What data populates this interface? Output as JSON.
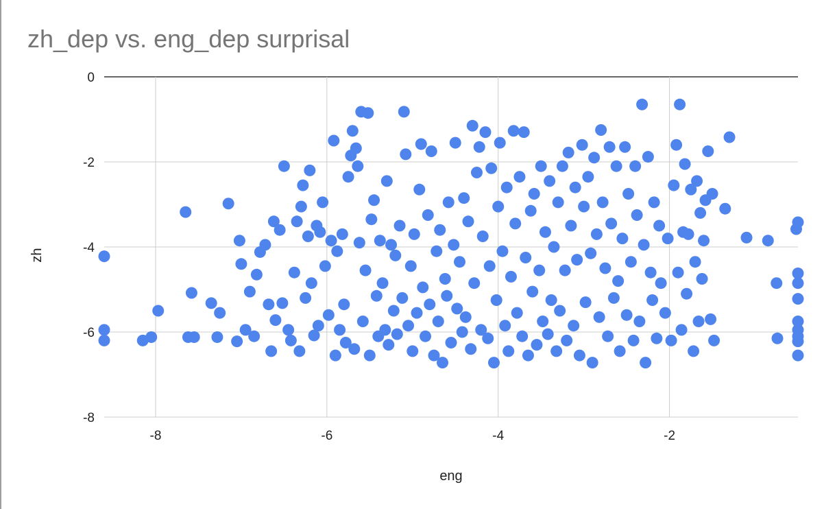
{
  "chart_data": {
    "type": "scatter",
    "title": "zh_dep vs. eng_dep surprisal",
    "xlabel": "eng",
    "ylabel": "zh",
    "xlim": [
      -8.6,
      -0.5
    ],
    "ylim": [
      -8,
      0
    ],
    "x_ticks": [
      -8,
      -6,
      -4,
      -2
    ],
    "x_tick_labels": [
      "-8",
      "-6",
      "-4",
      "-2"
    ],
    "y_ticks": [
      0,
      -2,
      -4,
      -6,
      -8
    ],
    "y_tick_labels": [
      "0",
      "-2",
      "-4",
      "-6",
      "-8"
    ],
    "grid": true,
    "legend": "none",
    "color": "#4f84ec",
    "series": [
      {
        "points": [
          [
            -8.6,
            -4.22
          ],
          [
            -8.6,
            -5.95
          ],
          [
            -8.6,
            -6.2
          ],
          [
            -8.15,
            -6.2
          ],
          [
            -8.05,
            -6.12
          ],
          [
            -7.97,
            -5.5
          ],
          [
            -7.65,
            -3.18
          ],
          [
            -7.62,
            -6.12
          ],
          [
            -7.58,
            -5.08
          ],
          [
            -7.55,
            -6.12
          ],
          [
            -7.35,
            -5.32
          ],
          [
            -7.28,
            -6.12
          ],
          [
            -7.25,
            -5.55
          ],
          [
            -7.15,
            -2.98
          ],
          [
            -7.05,
            -6.22
          ],
          [
            -7.02,
            -3.85
          ],
          [
            -7.0,
            -4.4
          ],
          [
            -6.95,
            -5.95
          ],
          [
            -6.9,
            -5.05
          ],
          [
            -6.85,
            -6.1
          ],
          [
            -6.82,
            -4.65
          ],
          [
            -6.78,
            -4.12
          ],
          [
            -6.72,
            -3.95
          ],
          [
            -6.68,
            -5.35
          ],
          [
            -6.65,
            -6.45
          ],
          [
            -6.62,
            -3.4
          ],
          [
            -6.6,
            -5.72
          ],
          [
            -6.55,
            -3.6
          ],
          [
            -6.52,
            -5.32
          ],
          [
            -6.5,
            -2.1
          ],
          [
            -6.45,
            -5.95
          ],
          [
            -6.42,
            -6.2
          ],
          [
            -6.38,
            -4.6
          ],
          [
            -6.35,
            -3.4
          ],
          [
            -6.32,
            -6.45
          ],
          [
            -6.3,
            -3.05
          ],
          [
            -6.28,
            -2.55
          ],
          [
            -6.25,
            -5.2
          ],
          [
            -6.22,
            -3.75
          ],
          [
            -6.2,
            -2.2
          ],
          [
            -6.18,
            -4.85
          ],
          [
            -6.15,
            -6.08
          ],
          [
            -6.12,
            -3.5
          ],
          [
            -6.1,
            -5.85
          ],
          [
            -6.08,
            -3.65
          ],
          [
            -6.05,
            -2.95
          ],
          [
            -6.02,
            -4.45
          ],
          [
            -5.98,
            -5.6
          ],
          [
            -5.95,
            -3.85
          ],
          [
            -5.92,
            -1.5
          ],
          [
            -5.9,
            -6.55
          ],
          [
            -5.88,
            -4.1
          ],
          [
            -5.85,
            -5.95
          ],
          [
            -5.82,
            -3.7
          ],
          [
            -5.8,
            -5.35
          ],
          [
            -5.78,
            -6.25
          ],
          [
            -5.75,
            -2.35
          ],
          [
            -5.72,
            -1.85
          ],
          [
            -5.7,
            -1.27
          ],
          [
            -5.68,
            -6.4
          ],
          [
            -5.66,
            -1.68
          ],
          [
            -5.64,
            -2.1
          ],
          [
            -5.62,
            -3.9
          ],
          [
            -5.6,
            -0.82
          ],
          [
            -5.58,
            -5.75
          ],
          [
            -5.55,
            -4.55
          ],
          [
            -5.52,
            -0.85
          ],
          [
            -5.5,
            -6.55
          ],
          [
            -5.48,
            -3.35
          ],
          [
            -5.45,
            -2.9
          ],
          [
            -5.42,
            -5.15
          ],
          [
            -5.4,
            -6.1
          ],
          [
            -5.38,
            -3.85
          ],
          [
            -5.35,
            -4.85
          ],
          [
            -5.32,
            -5.95
          ],
          [
            -5.3,
            -2.45
          ],
          [
            -5.28,
            -6.3
          ],
          [
            -5.25,
            -3.95
          ],
          [
            -5.22,
            -5.5
          ],
          [
            -5.2,
            -4.2
          ],
          [
            -5.18,
            -6.05
          ],
          [
            -5.15,
            -3.5
          ],
          [
            -5.12,
            -5.2
          ],
          [
            -5.1,
            -0.82
          ],
          [
            -5.08,
            -1.82
          ],
          [
            -5.05,
            -5.85
          ],
          [
            -5.02,
            -4.45
          ],
          [
            -5.0,
            -6.45
          ],
          [
            -4.98,
            -3.7
          ],
          [
            -4.95,
            -5.55
          ],
          [
            -4.92,
            -2.65
          ],
          [
            -4.9,
            -1.58
          ],
          [
            -4.88,
            -4.95
          ],
          [
            -4.85,
            -6.1
          ],
          [
            -4.82,
            -3.25
          ],
          [
            -4.8,
            -5.35
          ],
          [
            -4.78,
            -1.75
          ],
          [
            -4.75,
            -6.55
          ],
          [
            -4.72,
            -4.1
          ],
          [
            -4.7,
            -5.75
          ],
          [
            -4.68,
            -3.6
          ],
          [
            -4.65,
            -6.72
          ],
          [
            -4.62,
            -4.75
          ],
          [
            -4.6,
            -5.15
          ],
          [
            -4.58,
            -2.95
          ],
          [
            -4.55,
            -6.25
          ],
          [
            -4.52,
            -3.95
          ],
          [
            -4.5,
            -1.55
          ],
          [
            -4.48,
            -5.45
          ],
          [
            -4.45,
            -4.35
          ],
          [
            -4.42,
            -6.0
          ],
          [
            -4.4,
            -2.85
          ],
          [
            -4.38,
            -5.65
          ],
          [
            -4.35,
            -3.4
          ],
          [
            -4.32,
            -6.4
          ],
          [
            -4.3,
            -1.15
          ],
          [
            -4.28,
            -4.85
          ],
          [
            -4.25,
            -2.25
          ],
          [
            -4.22,
            -1.65
          ],
          [
            -4.2,
            -5.95
          ],
          [
            -4.18,
            -3.75
          ],
          [
            -4.15,
            -1.3
          ],
          [
            -4.12,
            -6.15
          ],
          [
            -4.1,
            -4.45
          ],
          [
            -4.08,
            -2.15
          ],
          [
            -4.05,
            -6.72
          ],
          [
            -4.02,
            -5.25
          ],
          [
            -4.0,
            -3.05
          ],
          [
            -3.98,
            -1.55
          ],
          [
            -3.95,
            -4.1
          ],
          [
            -3.92,
            -5.85
          ],
          [
            -3.9,
            -2.6
          ],
          [
            -3.88,
            -6.45
          ],
          [
            -3.85,
            -4.7
          ],
          [
            -3.82,
            -1.27
          ],
          [
            -3.8,
            -3.45
          ],
          [
            -3.78,
            -5.55
          ],
          [
            -3.75,
            -2.35
          ],
          [
            -3.72,
            -6.1
          ],
          [
            -3.7,
            -1.3
          ],
          [
            -3.68,
            -4.25
          ],
          [
            -3.65,
            -6.55
          ],
          [
            -3.62,
            -3.15
          ],
          [
            -3.6,
            -5.05
          ],
          [
            -3.58,
            -2.75
          ],
          [
            -3.55,
            -6.3
          ],
          [
            -3.52,
            -4.55
          ],
          [
            -3.5,
            -2.1
          ],
          [
            -3.48,
            -5.75
          ],
          [
            -3.45,
            -3.65
          ],
          [
            -3.42,
            -6.05
          ],
          [
            -3.4,
            -2.45
          ],
          [
            -3.38,
            -5.25
          ],
          [
            -3.35,
            -4.0
          ],
          [
            -3.32,
            -6.45
          ],
          [
            -3.3,
            -2.95
          ],
          [
            -3.28,
            -5.5
          ],
          [
            -3.25,
            -2.1
          ],
          [
            -3.22,
            -4.55
          ],
          [
            -3.2,
            -6.2
          ],
          [
            -3.18,
            -1.78
          ],
          [
            -3.15,
            -3.5
          ],
          [
            -3.12,
            -5.85
          ],
          [
            -3.1,
            -2.6
          ],
          [
            -3.08,
            -4.3
          ],
          [
            -3.05,
            -6.55
          ],
          [
            -3.02,
            -1.6
          ],
          [
            -3.0,
            -3.05
          ],
          [
            -2.98,
            -5.3
          ],
          [
            -2.95,
            -2.35
          ],
          [
            -2.92,
            -4.15
          ],
          [
            -2.9,
            -6.72
          ],
          [
            -2.88,
            -1.9
          ],
          [
            -2.85,
            -3.7
          ],
          [
            -2.82,
            -5.65
          ],
          [
            -2.8,
            -1.25
          ],
          [
            -2.78,
            -2.95
          ],
          [
            -2.75,
            -4.5
          ],
          [
            -2.72,
            -6.1
          ],
          [
            -2.7,
            -1.65
          ],
          [
            -2.68,
            -3.45
          ],
          [
            -2.65,
            -5.2
          ],
          [
            -2.62,
            -2.1
          ],
          [
            -2.6,
            -4.8
          ],
          [
            -2.58,
            -6.45
          ],
          [
            -2.55,
            -3.8
          ],
          [
            -2.52,
            -1.65
          ],
          [
            -2.5,
            -5.6
          ],
          [
            -2.48,
            -2.75
          ],
          [
            -2.45,
            -4.35
          ],
          [
            -2.42,
            -6.2
          ],
          [
            -2.4,
            -2.1
          ],
          [
            -2.38,
            -3.25
          ],
          [
            -2.35,
            -5.75
          ],
          [
            -2.32,
            -0.65
          ],
          [
            -2.3,
            -3.95
          ],
          [
            -2.28,
            -6.72
          ],
          [
            -2.25,
            -1.88
          ],
          [
            -2.22,
            -4.6
          ],
          [
            -2.2,
            -5.25
          ],
          [
            -2.18,
            -2.95
          ],
          [
            -2.15,
            -6.15
          ],
          [
            -2.12,
            -3.5
          ],
          [
            -2.1,
            -4.85
          ],
          [
            -2.05,
            -5.55
          ],
          [
            -2.02,
            -3.8
          ],
          [
            -1.98,
            -6.2
          ],
          [
            -1.95,
            -2.55
          ],
          [
            -1.92,
            -1.6
          ],
          [
            -1.9,
            -4.6
          ],
          [
            -1.88,
            -0.65
          ],
          [
            -1.86,
            -5.95
          ],
          [
            -1.84,
            -3.65
          ],
          [
            -1.82,
            -2.05
          ],
          [
            -1.8,
            -5.1
          ],
          [
            -1.78,
            -3.7
          ],
          [
            -1.75,
            -2.65
          ],
          [
            -1.72,
            -6.45
          ],
          [
            -1.7,
            -4.35
          ],
          [
            -1.68,
            -2.45
          ],
          [
            -1.66,
            -5.75
          ],
          [
            -1.64,
            -3.2
          ],
          [
            -1.62,
            -4.75
          ],
          [
            -1.6,
            -3.85
          ],
          [
            -1.58,
            -2.9
          ],
          [
            -1.55,
            -1.75
          ],
          [
            -1.52,
            -5.7
          ],
          [
            -1.5,
            -2.75
          ],
          [
            -1.48,
            -6.2
          ],
          [
            -1.35,
            -3.1
          ],
          [
            -1.3,
            -1.42
          ],
          [
            -1.1,
            -3.78
          ],
          [
            -0.85,
            -3.85
          ],
          [
            -0.75,
            -4.85
          ],
          [
            -0.74,
            -6.15
          ],
          [
            -0.52,
            -3.58
          ],
          [
            -0.5,
            -3.42
          ],
          [
            -0.5,
            -4.62
          ],
          [
            -0.5,
            -4.85
          ],
          [
            -0.5,
            -5.22
          ],
          [
            -0.5,
            -5.75
          ],
          [
            -0.5,
            -5.95
          ],
          [
            -0.5,
            -6.1
          ],
          [
            -0.5,
            -6.22
          ],
          [
            -0.5,
            -6.55
          ]
        ]
      }
    ]
  }
}
